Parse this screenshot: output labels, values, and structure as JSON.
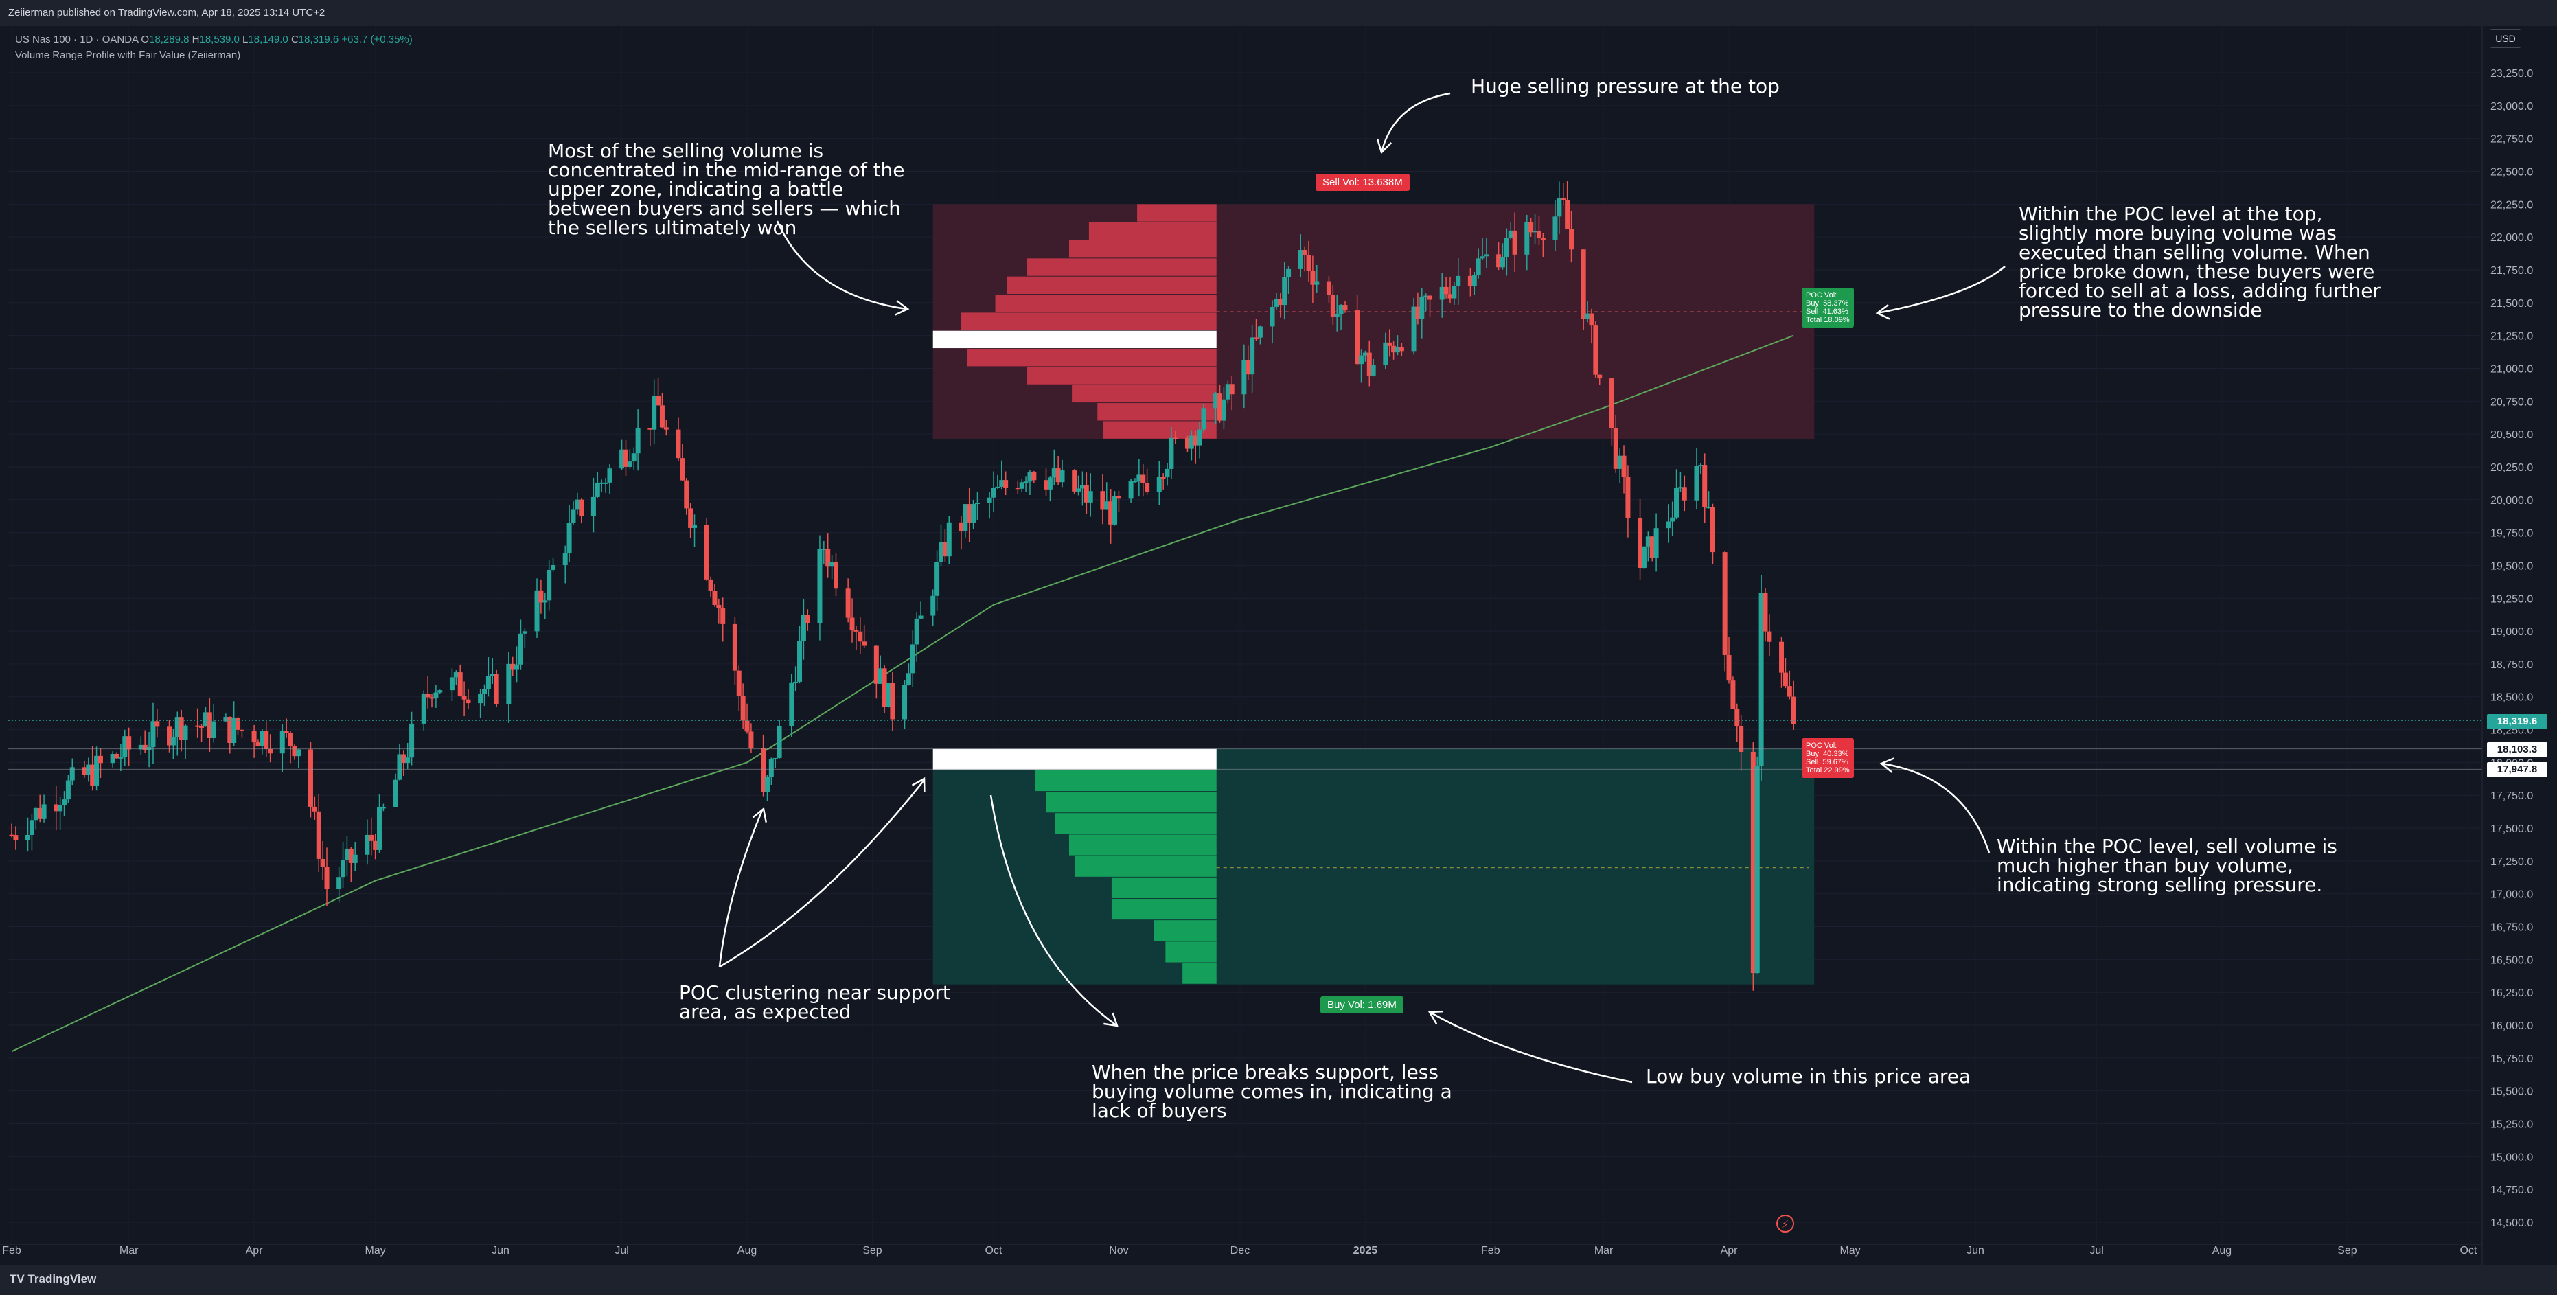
{
  "header": {
    "publisher_line": "Zeiierman published on TradingView.com, Apr 18, 2025 13:14 UTC+2"
  },
  "legend": {
    "symbol": "US Nas 100 · 1D · OANDA",
    "ohlc": [
      {
        "key": "O",
        "value": "18,289.8"
      },
      {
        "key": "H",
        "value": "18,539.0"
      },
      {
        "key": "L",
        "value": "18,149.0"
      },
      {
        "key": "C",
        "value": "18,319.6"
      }
    ],
    "change": "+63.7 (+0.35%)",
    "indicator": "Volume Range Profile with Fair Value (Zeiierman)"
  },
  "price_axis": {
    "currency": "USD",
    "last_price": "18,319.6",
    "line_price_1": "18,103.3",
    "line_price_2": "17,947.8"
  },
  "footer": {
    "brand": "TradingView"
  },
  "colors": {
    "up": "#26a69a",
    "down": "#ef5350",
    "sell_zone": "#3d1c2c",
    "buy_zone": "#10393a",
    "sell_bar": "#d3394b",
    "buy_bar": "#14a05a",
    "ma_line": "#5ca65b"
  },
  "badges": {
    "sell_vol": "Sell Vol: 13.638M",
    "buy_vol": "Buy Vol: 1.69M",
    "poc_top": "POC Vol:\nBuy  58.37%\nSell  41.63%\nTotal 18.09%",
    "poc_bottom": "POC Vol:\nBuy  40.33%\nSell  59.67%\nTotal 22.99%"
  },
  "annotations": {
    "top": "Huge selling pressure at the top",
    "left_top": "Most of the selling volume is\nconcentrated in the mid-range of the\nupper zone, indicating a battle\nbetween buyers and sellers — which\nthe sellers ultimately won",
    "right_top": "Within the POC level at the top,\nslightly more buying volume was\nexecuted than selling volume. When\nprice broke down, these buyers were\nforced to sell at a loss, adding further\npressure to the downside",
    "right_bottom": "Within the POC level, sell volume is\nmuch higher than buy volume,\nindicating strong selling pressure.",
    "poc_cluster": "POC clustering near support\narea, as expected",
    "breaks_support": "When the price breaks support, less\nbuying volume comes in, indicating a\nlack of buyers",
    "low_buy": "Low buy volume in this price area"
  },
  "chart_data": {
    "type": "candlestick",
    "title": "US Nas 100 · 1D · OANDA",
    "ylim": [
      14300,
      23500
    ],
    "y_ticks": [
      "14,500.0",
      "14,750.0",
      "15,000.0",
      "15,250.0",
      "15,500.0",
      "15,750.0",
      "16,000.0",
      "16,250.0",
      "16,500.0",
      "16,750.0",
      "17,000.0",
      "17,250.0",
      "17,500.0",
      "17,750.0",
      "18,000.0",
      "18,250.0",
      "18,500.0",
      "18,750.0",
      "19,000.0",
      "19,250.0",
      "19,500.0",
      "19,750.0",
      "20,000.0",
      "20,250.0",
      "20,500.0",
      "20,750.0",
      "21,000.0",
      "21,250.0",
      "21,500.0",
      "21,750.0",
      "22,000.0",
      "22,250.0",
      "22,500.0",
      "22,750.0",
      "23,000.0",
      "23,250.0"
    ],
    "x_ticks": [
      "Feb",
      "Mar",
      "Apr",
      "May",
      "Jun",
      "Jul",
      "Aug",
      "Sep",
      "Oct",
      "Nov",
      "Dec",
      "2025",
      "Feb",
      "Mar",
      "Apr",
      "May",
      "Jun",
      "Jul",
      "Aug",
      "Sep",
      "Oct"
    ],
    "price_keypoints": [
      [
        "2024-02-01",
        17450
      ],
      [
        "2024-02-14",
        17800
      ],
      [
        "2024-03-01",
        18100
      ],
      [
        "2024-03-14",
        18300
      ],
      [
        "2024-03-28",
        18250
      ],
      [
        "2024-04-12",
        18150
      ],
      [
        "2024-04-19",
        17050
      ],
      [
        "2024-05-01",
        17450
      ],
      [
        "2024-05-15",
        18600
      ],
      [
        "2024-06-01",
        18550
      ],
      [
        "2024-06-20",
        19900
      ],
      [
        "2024-07-10",
        20700
      ],
      [
        "2024-07-25",
        19200
      ],
      [
        "2024-08-05",
        17700
      ],
      [
        "2024-08-20",
        19650
      ],
      [
        "2024-09-06",
        18400
      ],
      [
        "2024-09-20",
        19750
      ],
      [
        "2024-10-10",
        20250
      ],
      [
        "2024-10-31",
        19900
      ],
      [
        "2024-11-15",
        20400
      ],
      [
        "2024-11-29",
        20800
      ],
      [
        "2024-12-16",
        21900
      ],
      [
        "2025-01-02",
        21000
      ],
      [
        "2025-01-24",
        21700
      ],
      [
        "2025-02-19",
        22200
      ],
      [
        "2025-03-10",
        19500
      ],
      [
        "2025-03-25",
        20300
      ],
      [
        "2025-04-04",
        18000
      ],
      [
        "2025-04-07",
        16500
      ],
      [
        "2025-04-09",
        19200
      ],
      [
        "2025-04-17",
        18320
      ]
    ],
    "ma_keypoints": [
      [
        "2024-02-01",
        15800
      ],
      [
        "2024-05-01",
        17100
      ],
      [
        "2024-08-01",
        18000
      ],
      [
        "2024-10-01",
        19200
      ],
      [
        "2024-12-01",
        19850
      ],
      [
        "2025-02-01",
        20400
      ],
      [
        "2025-03-01",
        20700
      ],
      [
        "2025-04-17",
        21250
      ]
    ],
    "sell_zone": {
      "from": "2024-09-16",
      "to": "2025-04-17",
      "low": 20460,
      "high": 22250,
      "poc": 21450,
      "poc_buy_pct": 58.37,
      "poc_sell_pct": 41.63,
      "poc_total_pct": 18.09,
      "volume": "13.638M"
    },
    "buy_zone": {
      "from": "2024-09-16",
      "to": "2025-04-17",
      "low": 16310,
      "high": 18103,
      "poc": 17950,
      "poc_buy_pct": 40.33,
      "poc_sell_pct": 59.67,
      "poc_total_pct": 22.99,
      "volume": "1.69M"
    },
    "sell_profile": [
      0.28,
      0.45,
      0.52,
      0.67,
      0.74,
      0.78,
      0.9,
      1.0,
      0.88,
      0.67,
      0.51,
      0.42,
      0.4
    ],
    "buy_profile": [
      1.0,
      0.64,
      0.6,
      0.57,
      0.52,
      0.5,
      0.37,
      0.37,
      0.22,
      0.18,
      0.12
    ]
  }
}
